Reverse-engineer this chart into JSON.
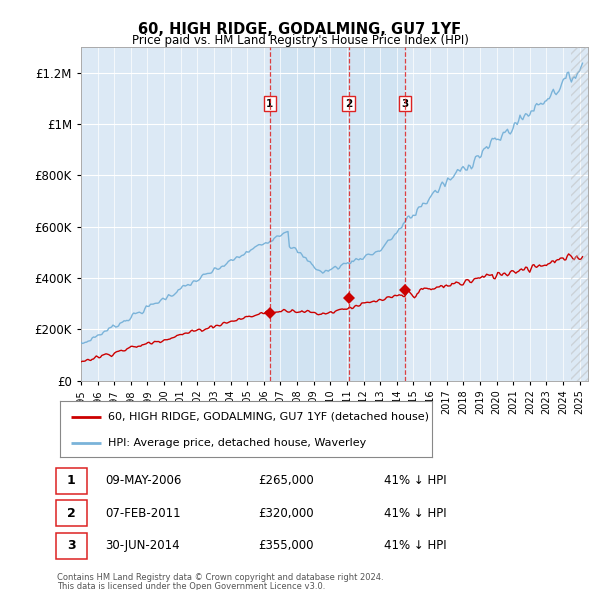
{
  "title": "60, HIGH RIDGE, GODALMING, GU7 1YF",
  "subtitle": "Price paid vs. HM Land Registry's House Price Index (HPI)",
  "ylim": [
    0,
    1300000
  ],
  "yticks": [
    0,
    200000,
    400000,
    600000,
    800000,
    1000000,
    1200000
  ],
  "ytick_labels": [
    "£0",
    "£200K",
    "£400K",
    "£600K",
    "£800K",
    "£1M",
    "£1.2M"
  ],
  "bg_color": "#dce9f5",
  "hpi_color": "#7ab3d9",
  "price_color": "#cc0000",
  "vline_color": "#dd2222",
  "purchases": [
    {
      "label": "1",
      "date_num": 2006.36,
      "price": 265000,
      "date_str": "09-MAY-2006",
      "pct": "41% ↓ HPI"
    },
    {
      "label": "2",
      "date_num": 2011.1,
      "price": 320000,
      "date_str": "07-FEB-2011",
      "pct": "41% ↓ HPI"
    },
    {
      "label": "3",
      "date_num": 2014.5,
      "price": 355000,
      "date_str": "30-JUN-2014",
      "pct": "41% ↓ HPI"
    }
  ],
  "legend_line1": "60, HIGH RIDGE, GODALMING, GU7 1YF (detached house)",
  "legend_line2": "HPI: Average price, detached house, Waverley",
  "footer1": "Contains HM Land Registry data © Crown copyright and database right 2024.",
  "footer2": "This data is licensed under the Open Government Licence v3.0.",
  "xmin": 1995.0,
  "xmax": 2025.5
}
